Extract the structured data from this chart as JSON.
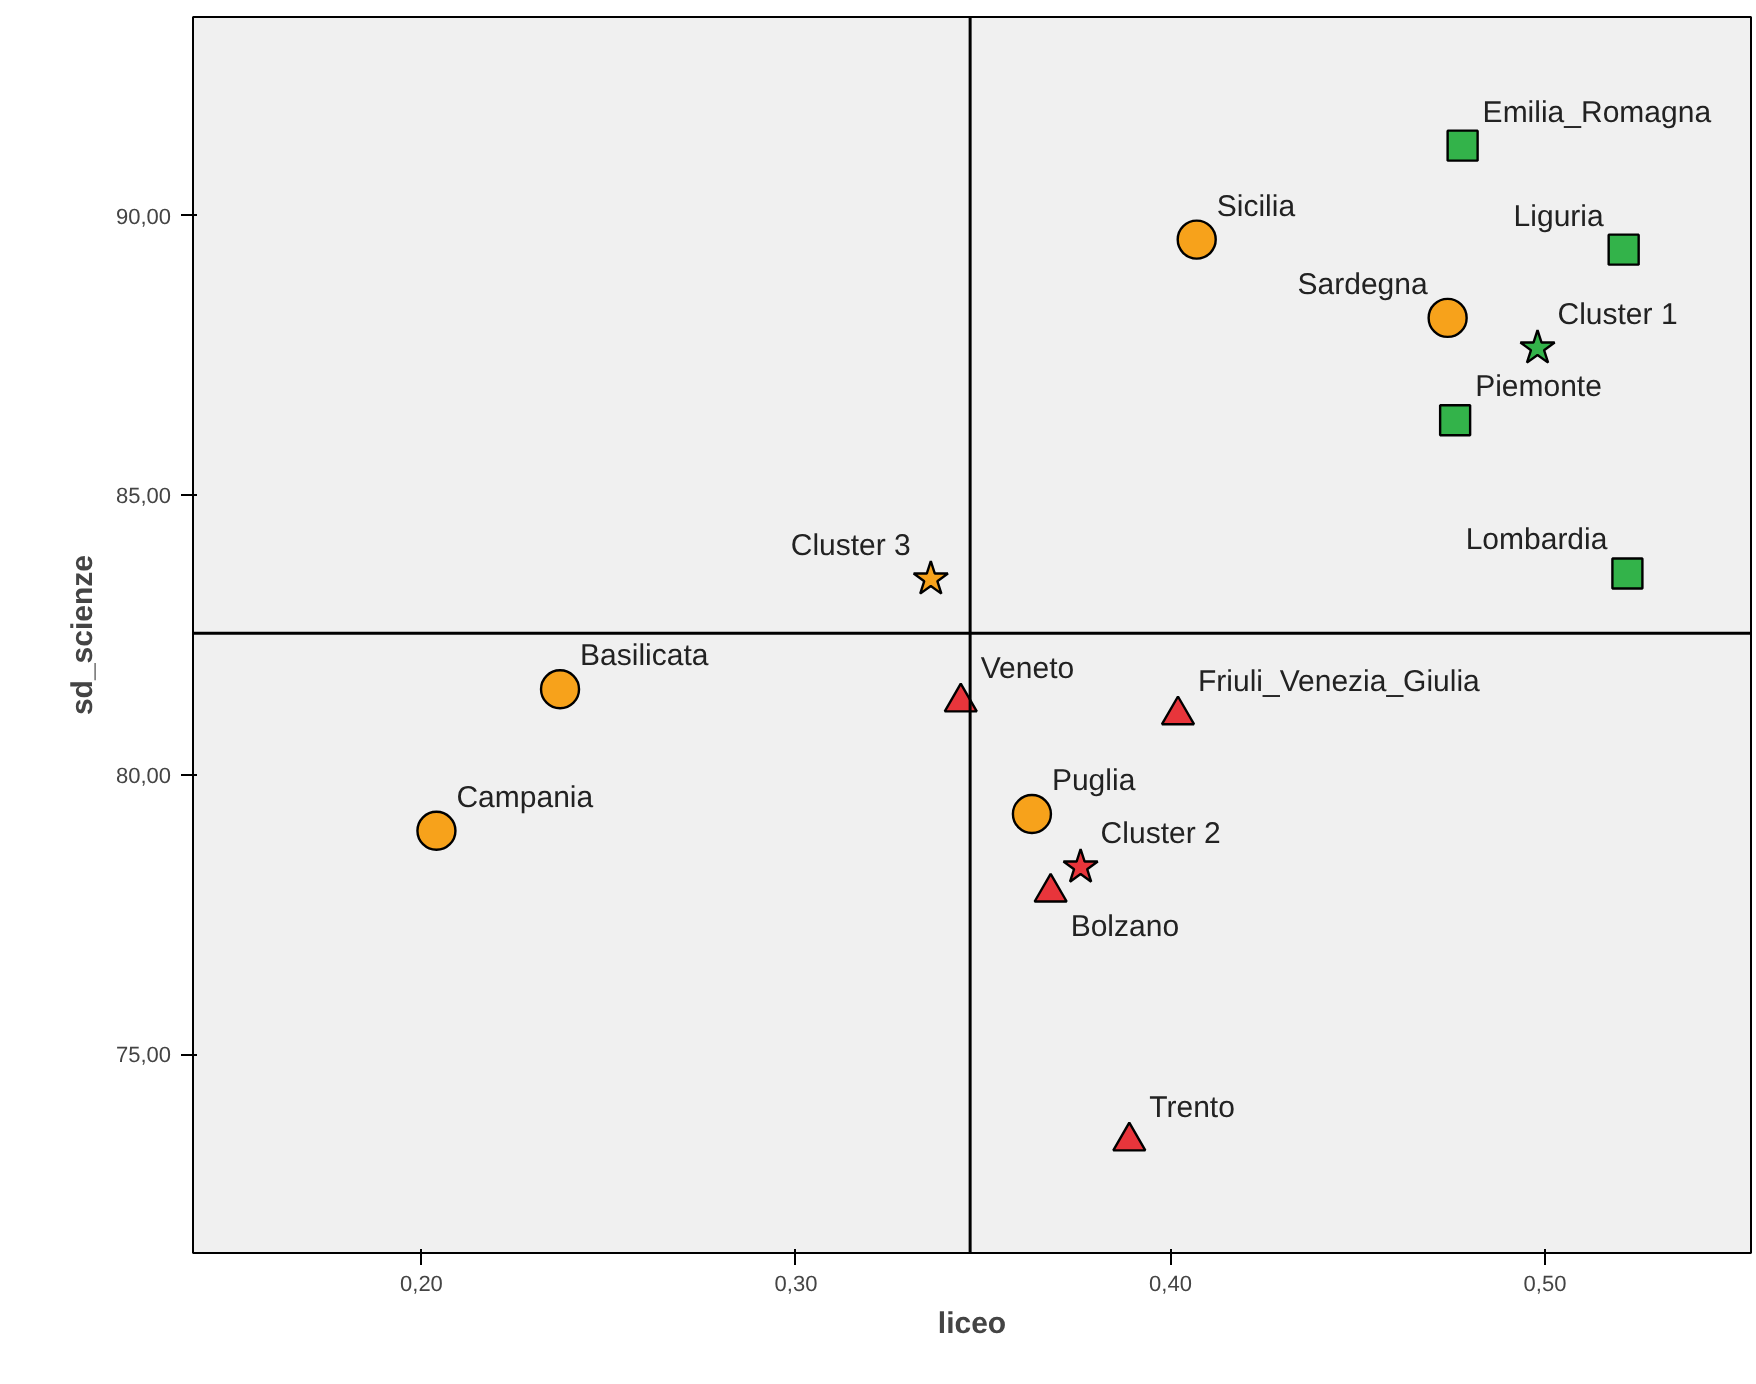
{
  "chart_data": {
    "type": "scatter",
    "xlabel": "liceo",
    "ylabel": "sd_scienze",
    "grid": false,
    "xlim": [
      0.139,
      0.555
    ],
    "ylim": [
      71.45,
      93.55
    ],
    "xticks": [
      {
        "value": 0.2,
        "label": "0,20"
      },
      {
        "value": 0.3,
        "label": "0,30"
      },
      {
        "value": 0.4,
        "label": "0,40"
      },
      {
        "value": 0.5,
        "label": "0,50"
      }
    ],
    "yticks": [
      {
        "value": 75,
        "label": "75,00"
      },
      {
        "value": 80,
        "label": "80,00"
      },
      {
        "value": 85,
        "label": "85,00"
      },
      {
        "value": 90,
        "label": "90,00"
      }
    ],
    "series": [
      {
        "color": "#33b34a",
        "marker": "square",
        "x": [
          0.478,
          0.521,
          0.476,
          0.522
        ],
        "values": [
          91.25,
          89.39,
          86.34,
          83.6
        ]
      },
      {
        "color": "#f7a21b",
        "marker": "circle",
        "x": [
          0.407,
          0.474,
          0.237,
          0.204,
          0.363
        ],
        "values": [
          89.57,
          88.17,
          81.53,
          79.0,
          79.3
        ]
      },
      {
        "color": "#e8353b",
        "marker": "triangle",
        "x": [
          0.344,
          0.402,
          0.368,
          0.389
        ],
        "values": [
          81.3,
          81.07,
          77.9,
          73.45
        ]
      },
      {
        "colors": [
          "#33b34a",
          "#e8353b",
          "#f7a21b"
        ],
        "marker": "star",
        "x": [
          0.498,
          0.376,
          0.336
        ],
        "values": [
          87.63,
          78.35,
          83.5
        ]
      }
    ],
    "ref_lines": [
      {
        "axis": "x",
        "value": 0.3465,
        "color": "#000000"
      },
      {
        "axis": "y",
        "value": 82.53,
        "color": "#000000"
      }
    ],
    "annotations": [
      {
        "text": "Emilia_Romagna",
        "x": 0.478,
        "y": 91.25
      },
      {
        "text": "Liguria",
        "x": 0.521,
        "y": 89.39
      },
      {
        "text": "Piemonte",
        "x": 0.476,
        "y": 86.34
      },
      {
        "text": "Lombardia",
        "x": 0.522,
        "y": 83.6
      },
      {
        "text": "Cluster 1",
        "x": 0.498,
        "y": 87.63
      },
      {
        "text": "Sicilia",
        "x": 0.407,
        "y": 89.57
      },
      {
        "text": "Sardegna",
        "x": 0.474,
        "y": 88.17
      },
      {
        "text": "Basilicata",
        "x": 0.237,
        "y": 81.53
      },
      {
        "text": "Campania",
        "x": 0.204,
        "y": 79.0
      },
      {
        "text": "Puglia",
        "x": 0.363,
        "y": 79.3
      },
      {
        "text": "Veneto",
        "x": 0.344,
        "y": 81.3
      },
      {
        "text": "Friuli_Venezia_Giulia",
        "x": 0.402,
        "y": 81.07
      },
      {
        "text": "Bolzano",
        "x": 0.368,
        "y": 77.9
      },
      {
        "text": "Cluster 2",
        "x": 0.376,
        "y": 78.35
      },
      {
        "text": "Trento",
        "x": 0.389,
        "y": 73.45
      },
      {
        "text": "Cluster 3",
        "x": 0.336,
        "y": 83.5
      }
    ]
  }
}
